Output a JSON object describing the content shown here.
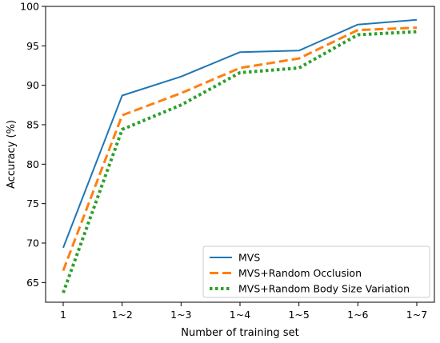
{
  "chart_data": {
    "type": "line",
    "x": [
      "1",
      "1~2",
      "1~3",
      "1~4",
      "1~5",
      "1~6",
      "1~7"
    ],
    "series": [
      {
        "name": "MVS",
        "values": [
          69.4,
          88.7,
          91.1,
          94.2,
          94.4,
          97.7,
          98.3
        ],
        "color": "#1f77b4",
        "style": "solid"
      },
      {
        "name": "MVS+Random Occlusion",
        "values": [
          66.5,
          86.2,
          89.0,
          92.2,
          93.4,
          97.0,
          97.3
        ],
        "color": "#ff7f0e",
        "style": "dashed"
      },
      {
        "name": "MVS+Random Body Size Variation",
        "values": [
          63.7,
          84.4,
          87.5,
          91.6,
          92.2,
          96.4,
          96.8
        ],
        "color": "#2ca02c",
        "style": "dotted"
      }
    ],
    "xlabel": "Number of training set",
    "ylabel": "Accuracy (%)",
    "ylim": [
      62.5,
      100
    ],
    "yticks": [
      65,
      70,
      75,
      80,
      85,
      90,
      95,
      100
    ],
    "grid": false,
    "legend_position": "bottom-right"
  }
}
